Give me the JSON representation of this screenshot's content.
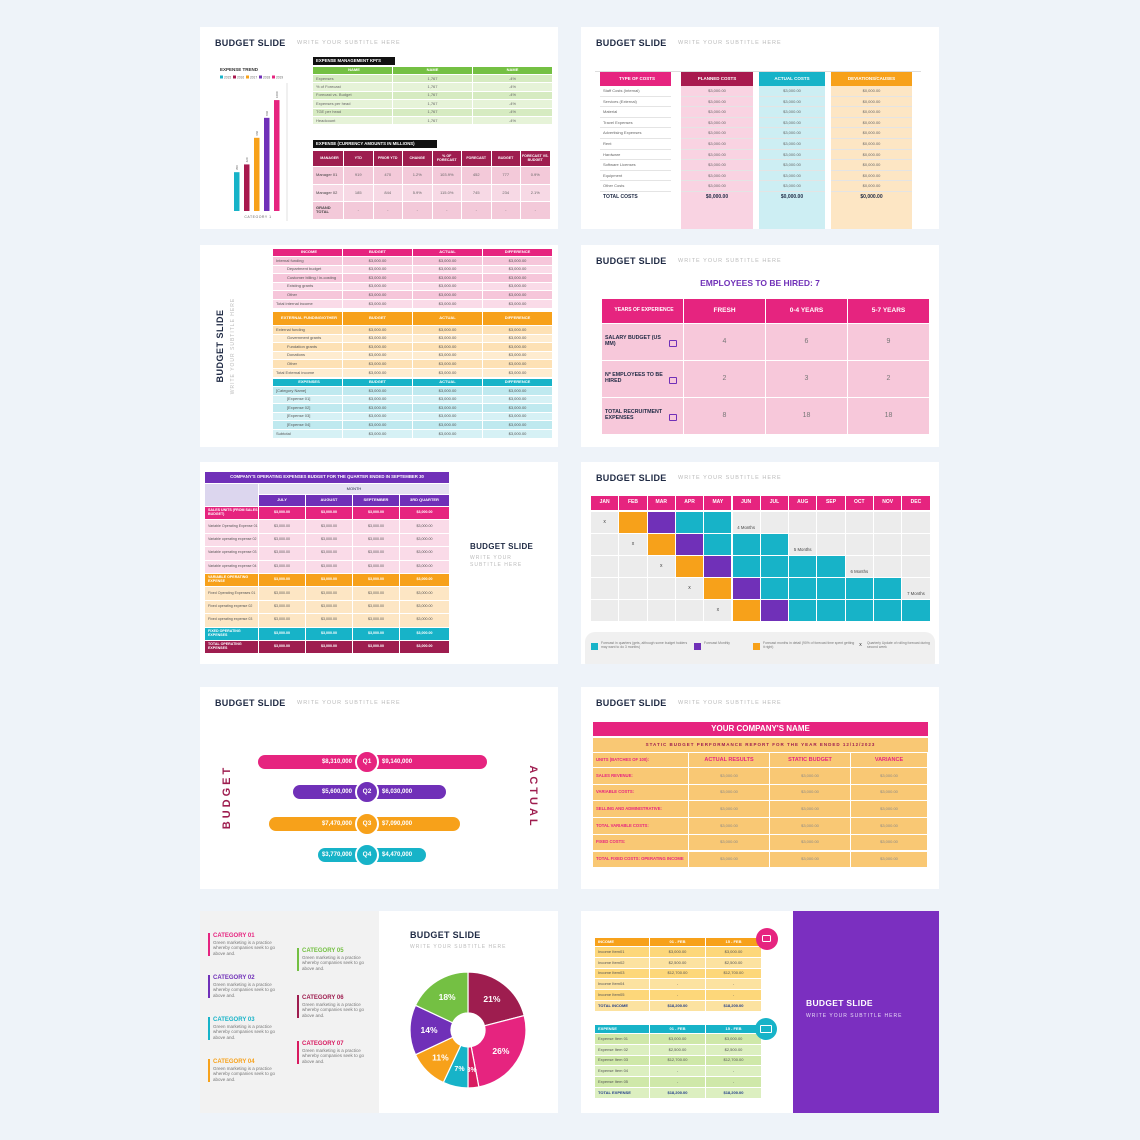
{
  "slides": [
    {
      "title": "BUDGET SLIDE",
      "subtitle": "WRITE YOUR SUBTITLE HERE",
      "chart": {
        "type": "bar",
        "title": "EXPENSE TREND",
        "categories": [
          "CATEGORY 1"
        ],
        "ylim": [
          0,
          1100
        ],
        "series": [
          {
            "name": "2015",
            "color": "#17b3c8",
            "values": [
              350
            ]
          },
          {
            "name": "2016",
            "color": "#a8194e",
            "values": [
              420
            ]
          },
          {
            "name": "2017",
            "color": "#f7a11a",
            "values": [
              660
            ]
          },
          {
            "name": "2018",
            "color": "#7030b8",
            "values": [
              840
            ]
          },
          {
            "name": "2019",
            "color": "#e6247f",
            "values": [
              1000
            ]
          }
        ]
      },
      "kpi": {
        "title": "EXPENSE MANAGEMENT KPI'S",
        "header": [
          "NAME",
          "NAME",
          "NAME"
        ],
        "rows": [
          [
            "Expenses",
            "1,767",
            "-4%"
          ],
          [
            "% of Forecast",
            "1,767",
            "-4%"
          ],
          [
            "Forecast vs. Budget",
            "1,767",
            "-4%"
          ],
          [
            "Expenses per head",
            "1,767",
            "-4%"
          ],
          [
            "TGE per head",
            "1,767",
            "-4%"
          ],
          [
            "Headcount",
            "1,767",
            "-4%"
          ]
        ]
      },
      "expense": {
        "title": "EXPENSE (CURRENCY AMOUNTS IN MILLIONS)",
        "header": [
          "MANAGER",
          "YTD",
          "PRIOR YTD",
          "CHANGE",
          "% OF FORECAST",
          "FORECAST",
          "BUDGET",
          "FORECAST VS. BUDGET"
        ],
        "rows": [
          [
            "Manager 01",
            "919",
            "470",
            "1.2%",
            "103.9%",
            "452",
            "777",
            "0.9%"
          ],
          [
            "Manager 02",
            "185",
            "844",
            "5.9%",
            "115.0%",
            "745",
            "234",
            "2.1%"
          ],
          [
            "GRAND TOTAL",
            "-",
            "-",
            "-",
            "-",
            "-",
            "-",
            "-"
          ]
        ]
      }
    },
    {
      "title": "BUDGET SLIDE",
      "subtitle": "WRITE YOUR SUBTITLE HERE",
      "table": {
        "header": [
          "TYPE OF COSTS",
          "PLANNED COSTS",
          "ACTUAL COSTS",
          "DEVIATIONS/CAUSES"
        ],
        "rows": [
          [
            "Staff Costs (Internal)",
            "$3,000.00",
            "$3,000.00",
            "$0,000.00"
          ],
          [
            "Services (External)",
            "$3,000.00",
            "$3,000.00",
            "$0,000.00"
          ],
          [
            "Material",
            "$3,000.00",
            "$3,000.00",
            "$0,000.00"
          ],
          [
            "Travel Expenses",
            "$3,000.00",
            "$3,000.00",
            "$0,000.00"
          ],
          [
            "Advertising Expenses",
            "$3,000.00",
            "$3,000.00",
            "$0,000.00"
          ],
          [
            "Rent",
            "$3,000.00",
            "$3,000.00",
            "$0,000.00"
          ],
          [
            "Hardware",
            "$3,000.00",
            "$3,000.00",
            "$0,000.00"
          ],
          [
            "Software Licenses",
            "$3,000.00",
            "$3,000.00",
            "$0,000.00"
          ],
          [
            "Equipment",
            "$3,000.00",
            "$3,000.00",
            "$0,000.00"
          ],
          [
            "Other Costs",
            "$3,000.00",
            "$3,000.00",
            "$0,000.00"
          ],
          [
            "TOTAL COSTS",
            "$0,000.00",
            "$0,000.00",
            "$0,000.00"
          ]
        ]
      }
    },
    {
      "title": "BUDGET SLIDE",
      "subtitle": "WRITE YOUR SUBTITLE HERE",
      "income": {
        "header": [
          "INCOME",
          "BUDGET",
          "ACTUAL",
          "DIFFERENCE"
        ],
        "rows": [
          [
            "Internal funding",
            "$3,000.00",
            "$3,000.00",
            "$3,000.00"
          ],
          [
            "Department budget",
            "$3,000.00",
            "$3,000.00",
            "$3,000.00"
          ],
          [
            "Customer billing / in-costing",
            "$3,000.00",
            "$3,000.00",
            "$3,000.00"
          ],
          [
            "Existing grants",
            "$3,000.00",
            "$3,000.00",
            "$3,000.00"
          ],
          [
            "Other",
            "$3,000.00",
            "$3,000.00",
            "$3,000.00"
          ],
          [
            "Total internal income",
            "$3,000.00",
            "$3,000.00",
            "$3,000.00"
          ]
        ]
      },
      "external": {
        "header": [
          "EXTERNAL FUNDING/OTHER",
          "BUDGET",
          "ACTUAL",
          "DIFFERENCE"
        ],
        "rows": [
          [
            "External funding",
            "$3,000.00",
            "$3,000.00",
            "$3,000.00"
          ],
          [
            "Government grants",
            "$3,000.00",
            "$3,000.00",
            "$3,000.00"
          ],
          [
            "Fundation grants",
            "$3,000.00",
            "$3,000.00",
            "$3,000.00"
          ],
          [
            "Donations",
            "$3,000.00",
            "$3,000.00",
            "$3,000.00"
          ],
          [
            "Other",
            "$3,000.00",
            "$3,000.00",
            "$3,000.00"
          ],
          [
            "Total External income",
            "$3,000.00",
            "$3,000.00",
            "$3,000.00"
          ]
        ]
      },
      "expenses": {
        "header": [
          "EXPENSES",
          "BUDGET",
          "ACTUAL",
          "DIFFERENCE"
        ],
        "rows": [
          [
            "[Category Name]",
            "$3,000.00",
            "$3,000.00",
            "$3,000.00"
          ],
          [
            "[Expense 01]",
            "$3,000.00",
            "$3,000.00",
            "$3,000.00"
          ],
          [
            "[Expense 02]",
            "$3,000.00",
            "$3,000.00",
            "$3,000.00"
          ],
          [
            "[Expense 03]",
            "$3,000.00",
            "$3,000.00",
            "$3,000.00"
          ],
          [
            "[Expense 04]",
            "$3,000.00",
            "$3,000.00",
            "$3,000.00"
          ],
          [
            "Subtotal",
            "$3,000.00",
            "$3,000.00",
            "$3,000.00"
          ]
        ]
      }
    },
    {
      "title": "BUDGET SLIDE",
      "subtitle": "WRITE YOUR SUBTITLE HERE",
      "heading": "EMPLOYEES TO BE HIRED: 7",
      "table": {
        "header": [
          "YEARS OF EXPERIENCE",
          "FRESH",
          "0-4 YEARS",
          "5-7 YEARS"
        ],
        "rows": [
          [
            "SALARY BUDGET (US MM)",
            4,
            6,
            9
          ],
          [
            "Nº EMPLOYEES TO BE HIRED",
            2,
            3,
            2
          ],
          [
            "TOTAL RECRUITMENT EXPENSES",
            8,
            18,
            18
          ]
        ]
      }
    },
    {
      "title": "BUDGET SLIDE",
      "subtitle": "WRITE YOUR SUBTITLE HERE",
      "table_title": "COMPANY'S OPERATING EXPENSES BUDGET FOR THE QUARTER ENDED IN SEPTEMBER 30",
      "month_label": "MONTH",
      "header": [
        "JULY",
        "AUGUST",
        "SEPTEMBER",
        "3RD QUARTER"
      ],
      "rows": [
        [
          "SALES UNITS (FROM SALES BUDGET)",
          "$3,000.00",
          "$3,000.00",
          "$3,000.00",
          "$3,000.00"
        ],
        [
          "Variable Operating Expense 01",
          "$3,000.00",
          "$3,000.00",
          "$3,000.00",
          "$3,000.00"
        ],
        [
          "Variable operating expense 02",
          "$3,000.00",
          "$3,000.00",
          "$3,000.00",
          "$3,000.00"
        ],
        [
          "Variable operating expense 03",
          "$3,000.00",
          "$3,000.00",
          "$3,000.00",
          "$3,000.00"
        ],
        [
          "Variable operating expense 04",
          "$3,000.00",
          "$3,000.00",
          "$3,000.00",
          "$3,000.00"
        ],
        [
          "VARIABLE OPERATING EXPENSE",
          "$3,000.00",
          "$3,000.00",
          "$3,000.00",
          "$3,000.00"
        ],
        [
          "Fixed Operating Expenses 01",
          "$3,000.00",
          "$3,000.00",
          "$3,000.00",
          "$3,000.00"
        ],
        [
          "Fixed operating expense 02",
          "$3,000.00",
          "$3,000.00",
          "$3,000.00",
          "$3,000.00"
        ],
        [
          "Fixed operating expense 03",
          "$3,000.00",
          "$3,000.00",
          "$3,000.00",
          "$3,000.00"
        ],
        [
          "FIXED OPERATING EXPENSES",
          "$3,000.00",
          "$3,000.00",
          "$3,000.00",
          "$3,000.00"
        ],
        [
          "TOTAL OPERATING EXPENSES",
          "$3,000.00",
          "$3,000.00",
          "$3,000.00",
          "$3,000.00"
        ]
      ]
    },
    {
      "title": "BUDGET SLIDE",
      "subtitle": "WRITE YOUR SUBTITLE HERE",
      "months": [
        "JAN",
        "FEB",
        "MAR",
        "APR",
        "MAY",
        "JUN",
        "JUL",
        "AUG",
        "SEP",
        "OCT",
        "NOV",
        "DEC"
      ],
      "mark": "x",
      "durations": [
        "4 Months",
        "5 Months",
        "6 Months",
        "7 Months"
      ],
      "legend": [
        "Forecast in quarters (gets, although some budget holders may want to do 3 months)",
        "Forecast Monthly",
        "Forecast months in detail (90% of forecast time spent getting it right)",
        "Quarterly Update of rolling forecast during second week"
      ]
    },
    {
      "title": "BUDGET SLIDE",
      "subtitle": "WRITE YOUR SUBTITLE HERE",
      "left_label": "BUDGET",
      "right_label": "ACTUAL",
      "quarters": [
        "Q1",
        "Q2",
        "Q3",
        "Q4"
      ],
      "budget": [
        {
          "value": 8310000,
          "label": "$8,310,000"
        },
        {
          "value": 5600000,
          "label": "$5,600,000"
        },
        {
          "value": 7470000,
          "label": "$7,470,000"
        },
        {
          "value": 3770000,
          "label": "$3,770,000"
        }
      ],
      "actual": [
        {
          "value": 9140000,
          "label": "$9,140,000"
        },
        {
          "value": 6030000,
          "label": "$6,030,000"
        },
        {
          "value": 7090000,
          "label": "$7,090,000"
        },
        {
          "value": 4470000,
          "label": "$4,470,000"
        }
      ]
    },
    {
      "title": "BUDGET SLIDE",
      "subtitle": "WRITE YOUR SUBTITLE HERE",
      "company": "YOUR COMPANY'S NAME",
      "report": "STATIC BUDGET PERFORMANCE REPORT FOR THE YEAR ENDED 12/12/2023",
      "table": {
        "header": [
          "UNITS (BATCHES OF 100):",
          "ACTUAL RESULTS",
          "STATIC BUDGET",
          "VARIANCE"
        ],
        "rows": [
          [
            "SALES REVENUE:",
            "$3,000.00",
            "$3,000.00",
            "$3,000.00"
          ],
          [
            "VARIABLE COSTS:",
            "$3,000.00",
            "$3,000.00",
            "$3,000.00"
          ],
          [
            "SELLING AND ADMINISTRATIVE:",
            "$3,000.00",
            "$3,000.00",
            "$3,000.00"
          ],
          [
            "TOTAL VARIABLE COSTS:",
            "$3,000.00",
            "$3,000.00",
            "$3,000.00"
          ],
          [
            "FIXED COSTS:",
            "$3,000.00",
            "$3,000.00",
            "$3,000.00"
          ],
          [
            "TOTAL FIXED COSTS: OPERATING INCOME",
            "$3,000.00",
            "$3,000.00",
            "$3,000.00"
          ]
        ]
      }
    },
    {
      "title": "BUDGET SLIDE",
      "subtitle": "WRITE YOUR SUBTITLE HERE",
      "categories": [
        {
          "name": "CATEGORY 01",
          "text": "Green marketing is a practice whereby companies seek to go above and."
        },
        {
          "name": "CATEGORY 02",
          "text": "Green marketing is a practice whereby companies seek to go above and."
        },
        {
          "name": "CATEGORY 03",
          "text": "Green marketing is a practice whereby companies seek to go above and."
        },
        {
          "name": "CATEGORY 04",
          "text": "Green marketing is a practice whereby companies seek to go above and."
        },
        {
          "name": "CATEGORY 05",
          "text": "Green marketing is a practice whereby companies seek to go above and."
        },
        {
          "name": "CATEGORY 06",
          "text": "Green marketing is a practice whereby companies seek to go above and."
        },
        {
          "name": "CATEGORY 07",
          "text": "Green marketing is a practice whereby companies seek to go above and."
        }
      ],
      "pie": {
        "type": "pie",
        "values": [
          21,
          26,
          3,
          7,
          11,
          14,
          18
        ],
        "value_labels": [
          "21%",
          "26%",
          "3%",
          "7%",
          "11%",
          "14%",
          "18%"
        ],
        "colors": [
          "#9e1d4f",
          "#e6247f",
          "#d81b60",
          "#17b3c8",
          "#f7a11a",
          "#7030b8",
          "#74c043"
        ]
      }
    },
    {
      "title": "BUDGET SLIDE",
      "subtitle": "WRITE YOUR SUBTITLE HERE",
      "income": {
        "header": [
          "INCOME",
          "01 - FEB",
          "15 - FEB"
        ],
        "rows": [
          [
            "Income Item01",
            "$3,000.00",
            "$3,000.00"
          ],
          [
            "Income Item02",
            "$2,500.00",
            "$2,500.00"
          ],
          [
            "Income Item03",
            "$12,700.00",
            "$12,700.00"
          ],
          [
            "Income Item04",
            "-",
            "-"
          ],
          [
            "Income Item05",
            "-",
            "-"
          ],
          [
            "TOTAL INCOME",
            "$18,200.00",
            "$18,200.00"
          ]
        ]
      },
      "expense": {
        "header": [
          "EXPENSE",
          "01 - FEB",
          "15 - FEB"
        ],
        "rows": [
          [
            "Expense Item 01",
            "$3,000.00",
            "$3,000.00"
          ],
          [
            "Expense Item 02",
            "$2,500.00",
            "$2,500.00"
          ],
          [
            "Expense Item 03",
            "$12,700.00",
            "$12,700.00"
          ],
          [
            "Expense Item 04",
            "-",
            "-"
          ],
          [
            "Expense Item 05",
            "-",
            "-"
          ],
          [
            "TOTAL EXPENSE",
            "$18,200.00",
            "$18,200.00"
          ]
        ]
      }
    }
  ]
}
